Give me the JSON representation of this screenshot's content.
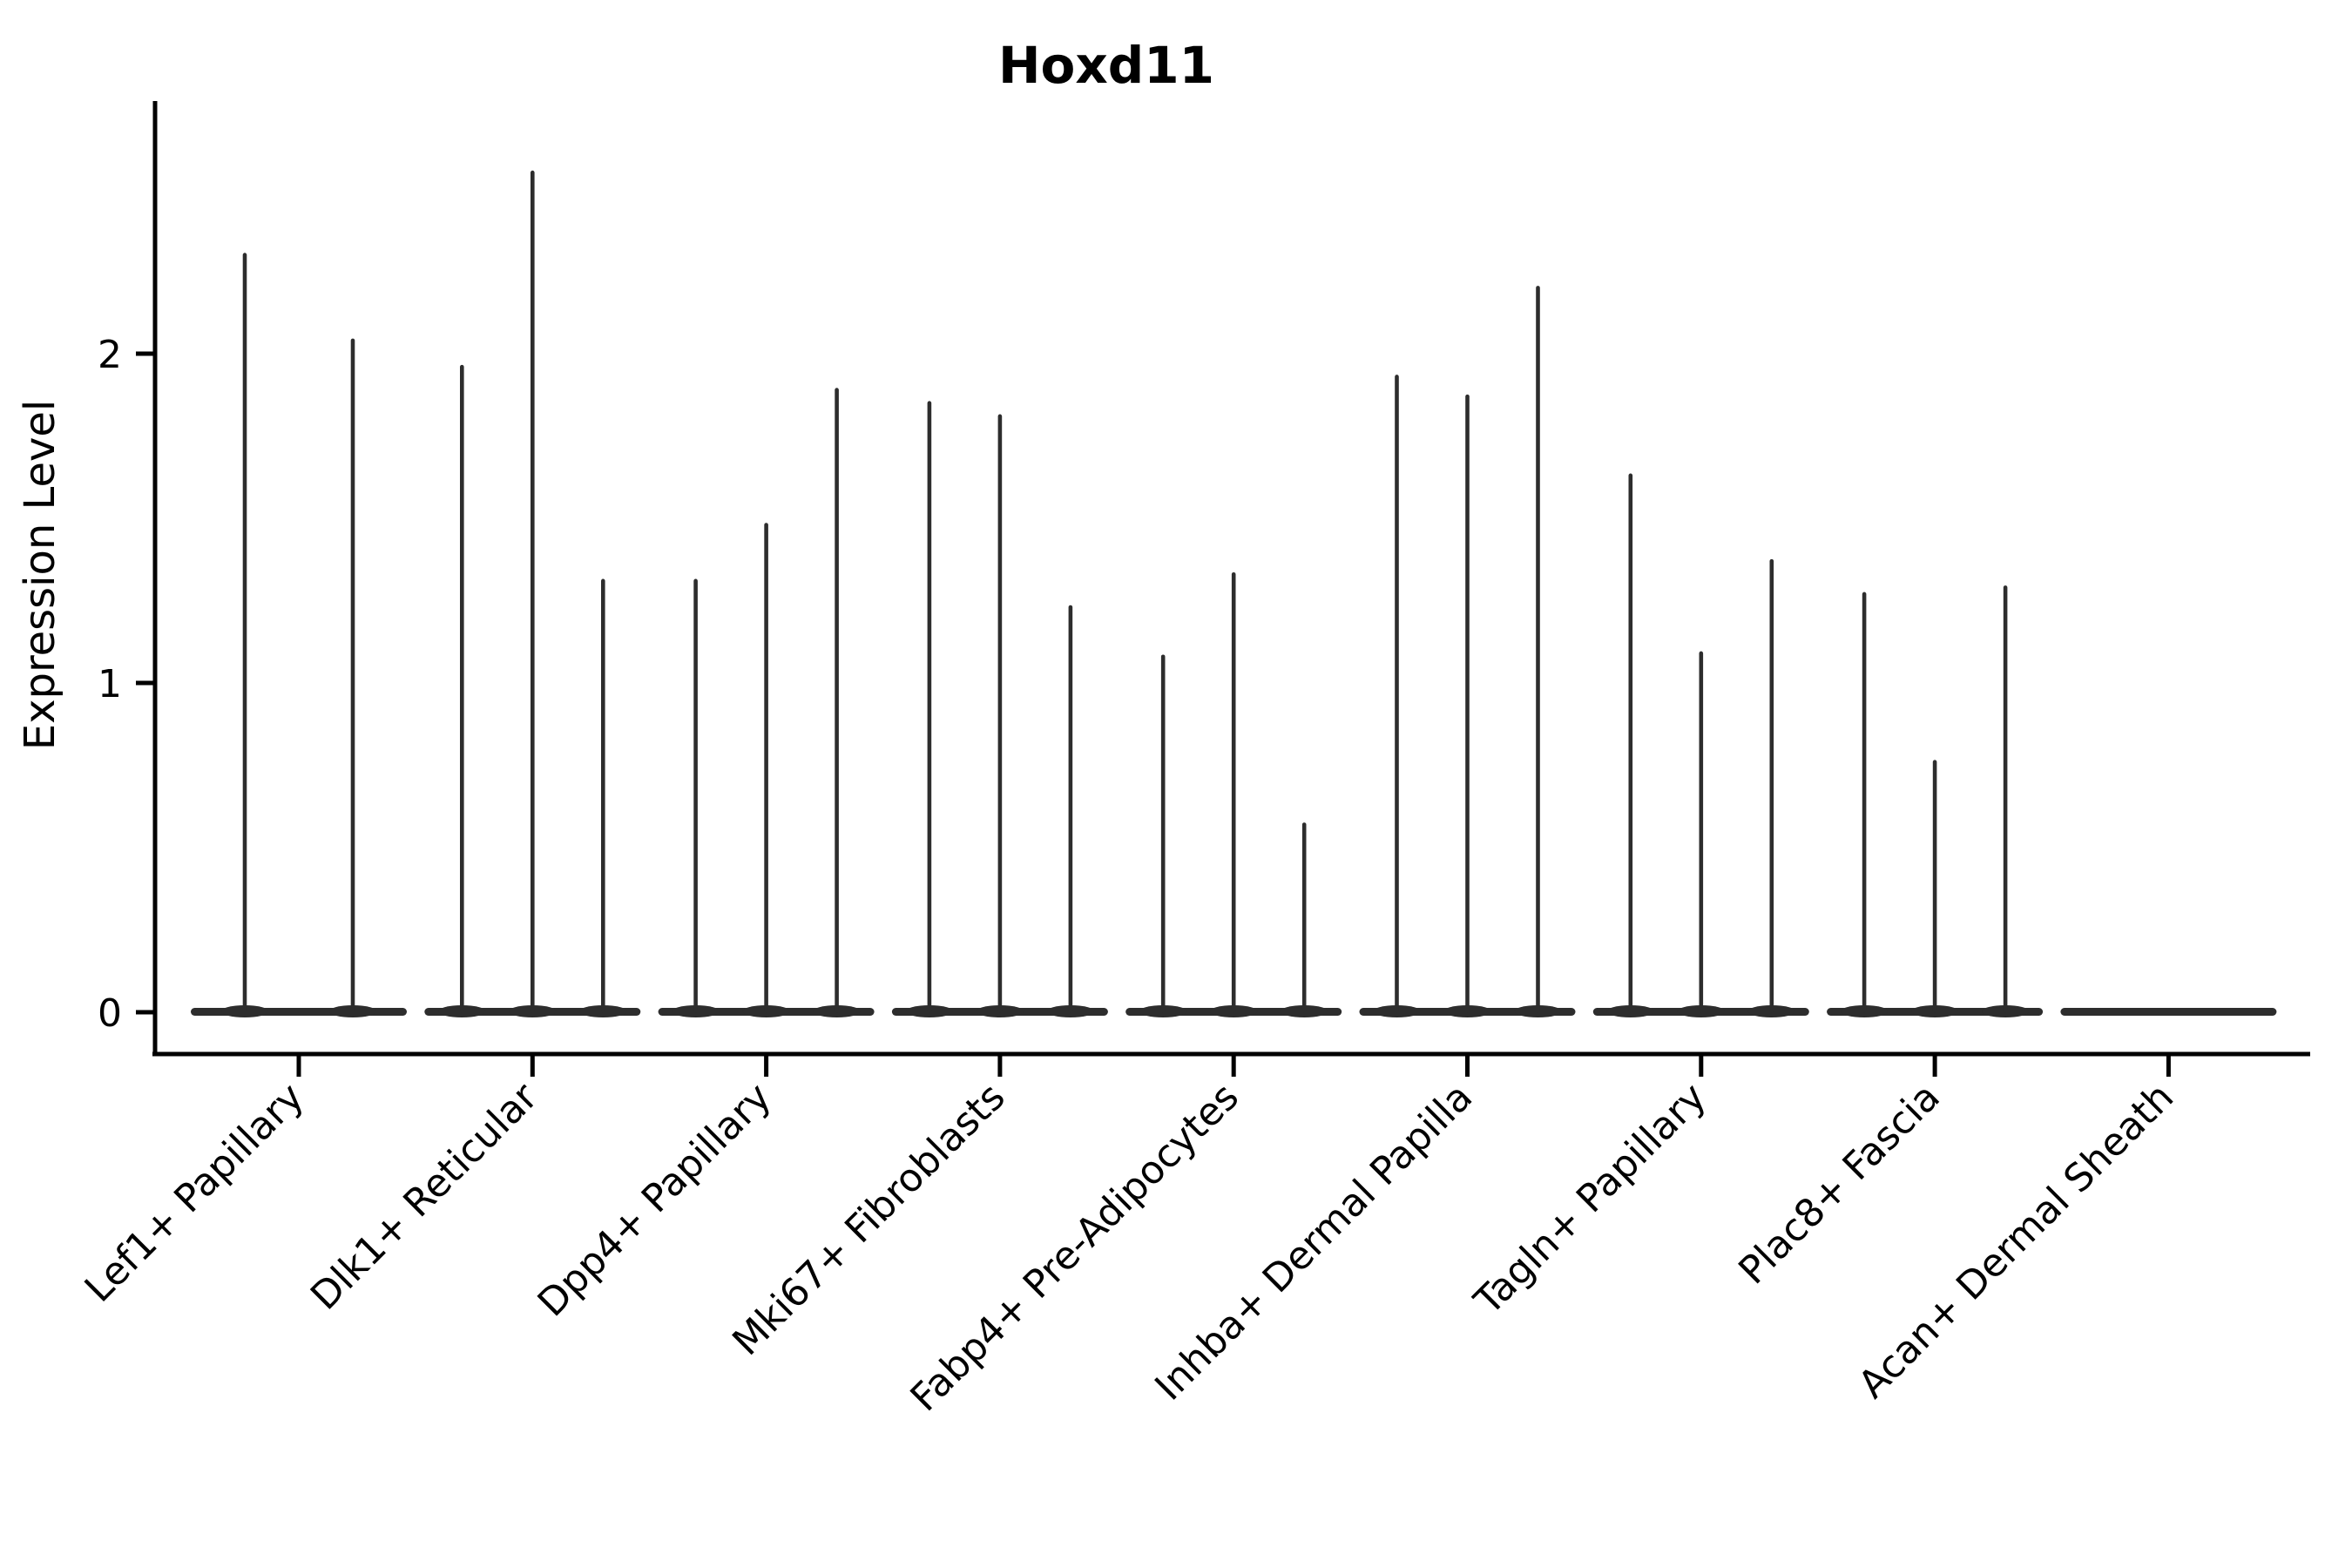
{
  "chart_data": {
    "type": "violin",
    "title": "Hoxd11",
    "xlabel": "",
    "ylabel": "Expression Level",
    "yticks": [
      0,
      1,
      2
    ],
    "ylim": [
      -0.13,
      2.76
    ],
    "grid": false,
    "legend": null,
    "line_color": "#2d2d2d",
    "description": "Single-cell expression violins; each category shows thin spike-violins (most cells at 0, thin spike to max expression).",
    "categories": [
      {
        "label": "Lef1+ Papillary",
        "offsets": [
          -62,
          62
        ],
        "violin_maxima": [
          2.3,
          2.04
        ]
      },
      {
        "label": "Dlk1+ Reticular",
        "offsets": [
          -81,
          0,
          81
        ],
        "violin_maxima": [
          1.96,
          2.55,
          1.31
        ]
      },
      {
        "label": "Dpp4+ Papillary",
        "offsets": [
          -81,
          0,
          81
        ],
        "violin_maxima": [
          1.31,
          1.48,
          1.89
        ]
      },
      {
        "label": "Mki67+ Fibroblasts",
        "offsets": [
          -81,
          0,
          81
        ],
        "violin_maxima": [
          1.85,
          1.81,
          1.23
        ]
      },
      {
        "label": "Fabp4+ Pre-Adipocytes",
        "offsets": [
          -81,
          0,
          81
        ],
        "violin_maxima": [
          1.08,
          1.33,
          0.57
        ]
      },
      {
        "label": "Inhba+ Dermal Papilla",
        "offsets": [
          -81,
          0,
          81
        ],
        "violin_maxima": [
          1.93,
          1.87,
          2.2
        ]
      },
      {
        "label": "Tagln+ Papillary",
        "offsets": [
          -81,
          0,
          81
        ],
        "violin_maxima": [
          1.63,
          1.09,
          1.37
        ]
      },
      {
        "label": "Plac8+ Fascia",
        "offsets": [
          -81,
          0,
          81
        ],
        "violin_maxima": [
          1.27,
          0.76,
          1.29
        ]
      },
      {
        "label": "Acan+ Dermal Sheath",
        "offsets": [
          -81,
          0,
          81
        ],
        "violin_maxima": [
          0,
          0,
          0
        ]
      }
    ]
  }
}
